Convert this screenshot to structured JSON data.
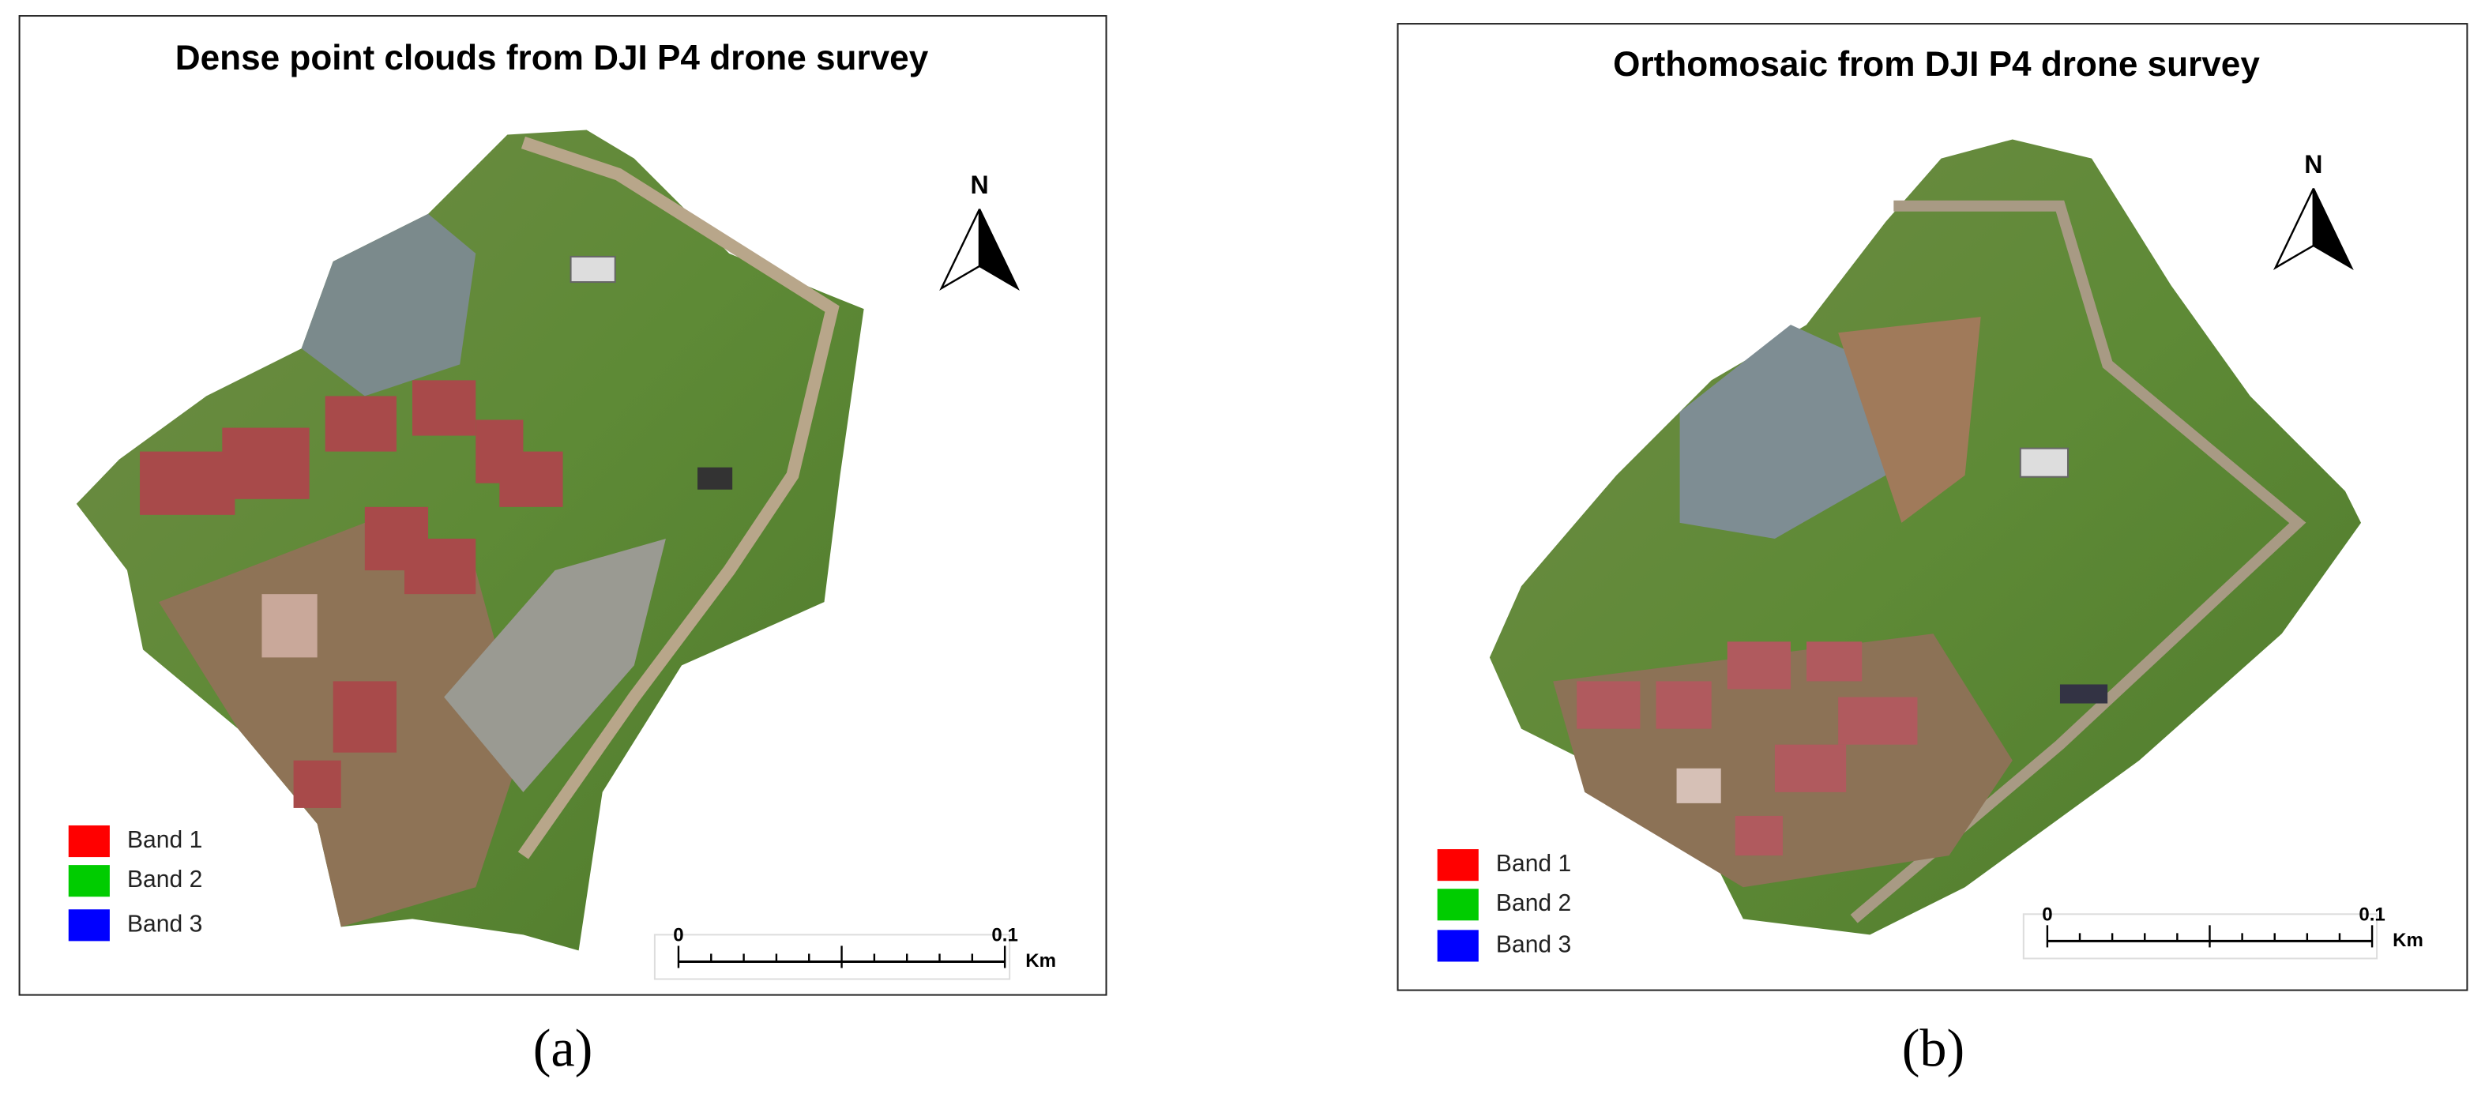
{
  "panels": [
    {
      "title": "Dense point clouds from DJI P4 drone survey",
      "north": "N",
      "legend": [
        {
          "label": "Band 1",
          "color": "#ff0000"
        },
        {
          "label": "Band 2",
          "color": "#00cc00"
        },
        {
          "label": "Band 3",
          "color": "#0000ff"
        }
      ],
      "scale": {
        "start": "0",
        "end": "0.1",
        "unit": "Km"
      },
      "caption": "(a)"
    },
    {
      "title": "Orthomosaic from DJI P4 drone survey",
      "north": "N",
      "legend": [
        {
          "label": "Band 1",
          "color": "#ff0000"
        },
        {
          "label": "Band 2",
          "color": "#00cc00"
        },
        {
          "label": "Band 3",
          "color": "#0000ff"
        }
      ],
      "scale": {
        "start": "0",
        "end": "0.1",
        "unit": "Km"
      },
      "caption": "(b)"
    }
  ]
}
